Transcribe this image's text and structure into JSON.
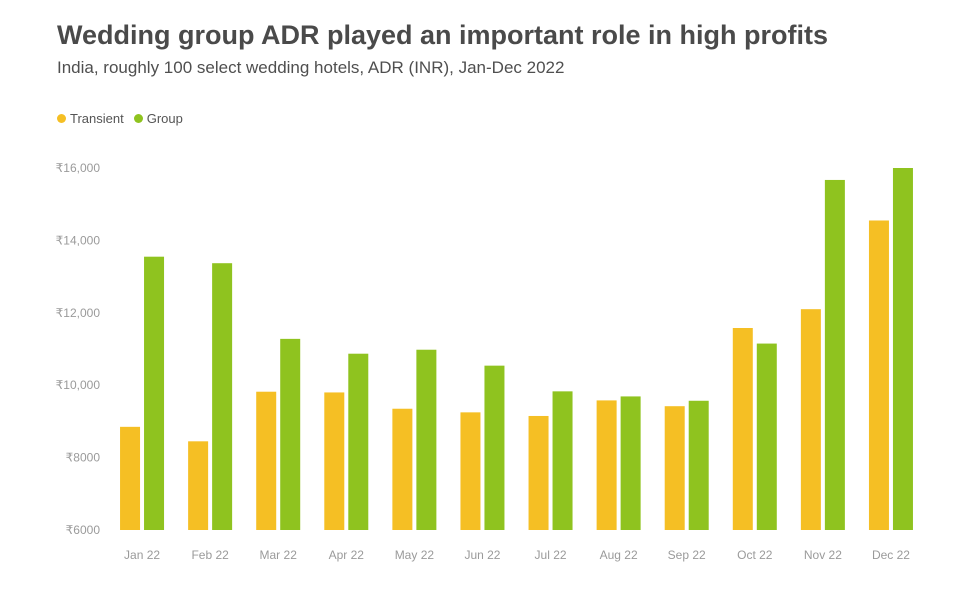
{
  "title": "Wedding group ADR played an important role in high profits",
  "subtitle": "India, roughly 100 select wedding hotels, ADR (INR), Jan-Dec 2022",
  "colors": {
    "transient": "#f5bf24",
    "group": "#8fc31f",
    "grid": "#dcdcdc",
    "text": "#9a9a9a"
  },
  "chart_data": {
    "type": "bar",
    "categories": [
      "Jan 22",
      "Feb 22",
      "Mar 22",
      "Apr 22",
      "May 22",
      "Jun 22",
      "Jul 22",
      "Aug 22",
      "Sep 22",
      "Oct 22",
      "Nov 22",
      "Dec 22"
    ],
    "series": [
      {
        "name": "Transient",
        "color": "#f5bf24",
        "values": [
          8850,
          8450,
          9820,
          9800,
          9350,
          9250,
          9150,
          9580,
          9420,
          11580,
          12100,
          14550
        ]
      },
      {
        "name": "Group",
        "color": "#8fc31f",
        "values": [
          13550,
          13370,
          11280,
          10870,
          10980,
          10540,
          9830,
          9690,
          9570,
          11150,
          15670,
          16000
        ]
      }
    ],
    "ylim": [
      6000,
      16000
    ],
    "yticks": [
      6000,
      8000,
      10000,
      12000,
      14000,
      16000
    ],
    "ytick_labels": [
      "₹6000",
      "₹8000",
      "₹10,000",
      "₹12,000",
      "₹14,000",
      "₹16,000"
    ],
    "legend_position": "top-left",
    "grid": false,
    "xlabel": "",
    "ylabel": ""
  }
}
